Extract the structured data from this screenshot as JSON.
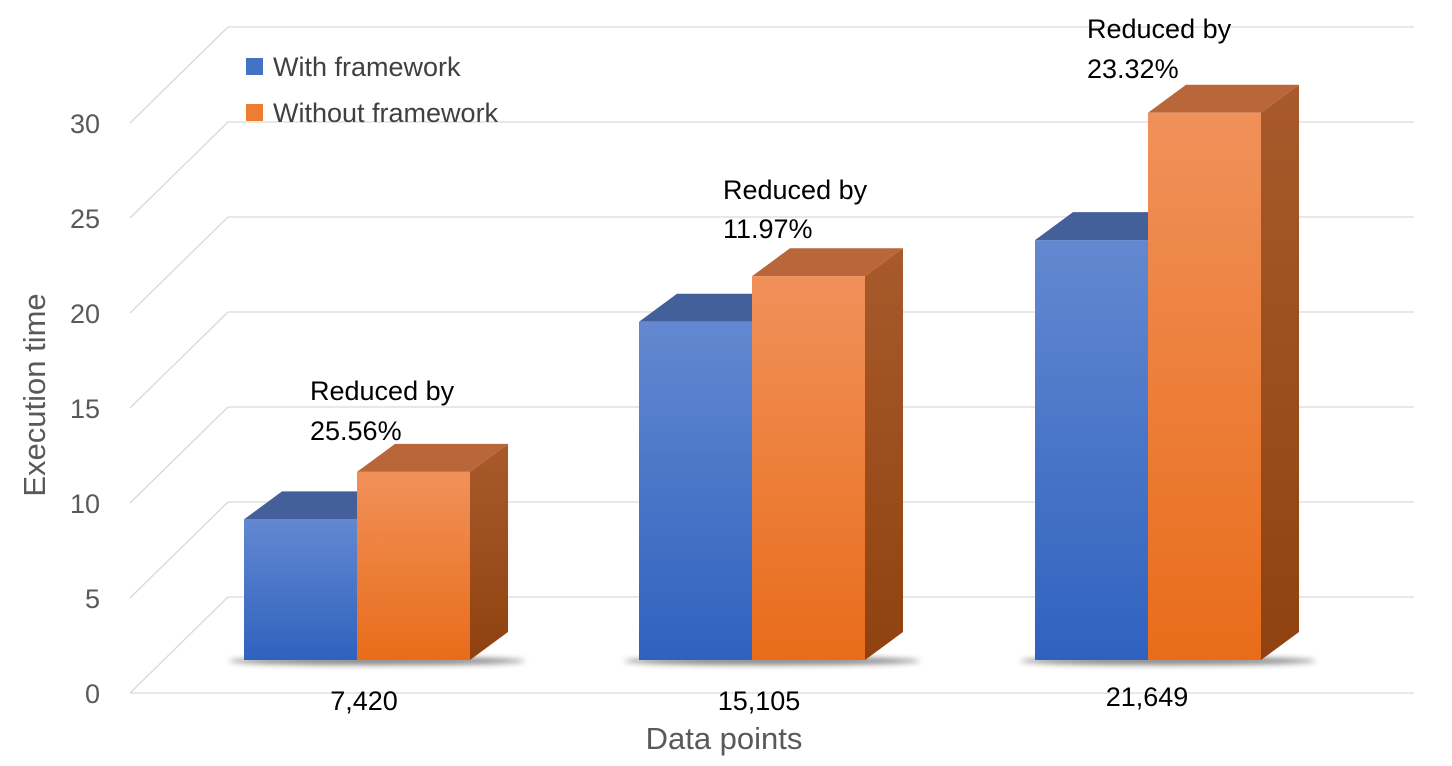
{
  "chart_data": {
    "type": "bar",
    "style": "3d-clustered-column",
    "categories": [
      "7,420",
      "15,105",
      "21,649"
    ],
    "series": [
      {
        "name": "With framework",
        "color": "#4472C4",
        "values": [
          7.4,
          17.8,
          22.1
        ]
      },
      {
        "name": "Without framework",
        "color": "#ED7D31",
        "values": [
          9.9,
          20.2,
          28.8
        ]
      }
    ],
    "annotations": [
      {
        "category": "7,420",
        "line1": "Reduced by",
        "line2": "25.56%"
      },
      {
        "category": "15,105",
        "line1": "Reduced by",
        "line2": "11.97%"
      },
      {
        "category": "21,649",
        "line1": "Reduced by",
        "line2": "23.32%"
      }
    ],
    "title": "",
    "xlabel": "Data points",
    "ylabel": "Execution time",
    "ylim": [
      0,
      30
    ],
    "yticks": [
      "0",
      "5",
      "10",
      "15",
      "20",
      "25",
      "30"
    ],
    "grid": true,
    "legend_position": "top-left"
  }
}
